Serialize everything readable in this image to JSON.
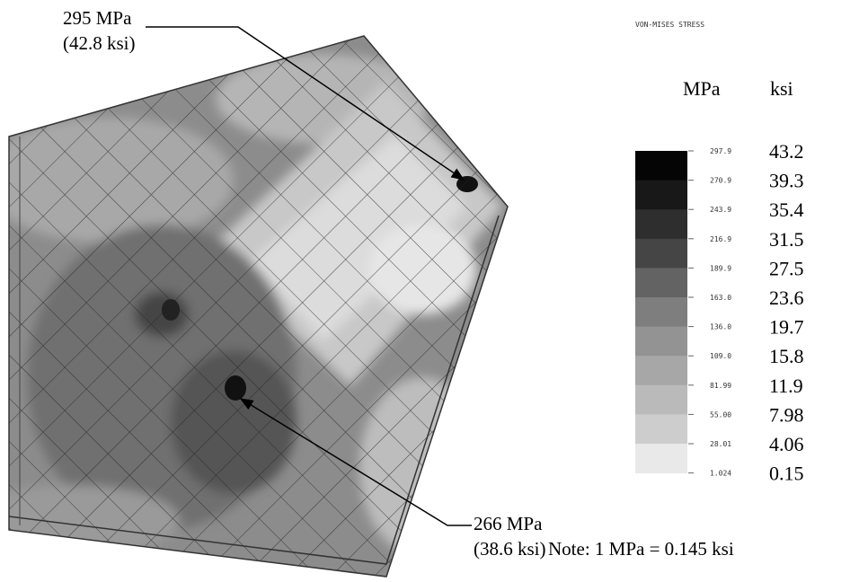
{
  "legend": {
    "title": "VON-MISES STRESS",
    "header_mpa": "MPa",
    "header_ksi": "ksi",
    "mpa": [
      "297.9",
      "270.9",
      "243.9",
      "216.9",
      "189.9",
      "163.0",
      "136.0",
      "109.0",
      "81.99",
      "55.00",
      "28.01",
      "1.024"
    ],
    "ksi": [
      "43.2",
      "39.3",
      "35.4",
      "31.5",
      "27.5",
      "23.6",
      "19.7",
      "15.8",
      "11.9",
      "7.98",
      "4.06",
      "0.15"
    ]
  },
  "annotations": [
    {
      "line1": "295 MPa",
      "line2": "(42.8 ksi)"
    },
    {
      "line1": "266 MPa",
      "line2": "(38.6 ksi)"
    }
  ],
  "note": "Note: 1 MPa = 0.145 ksi"
}
